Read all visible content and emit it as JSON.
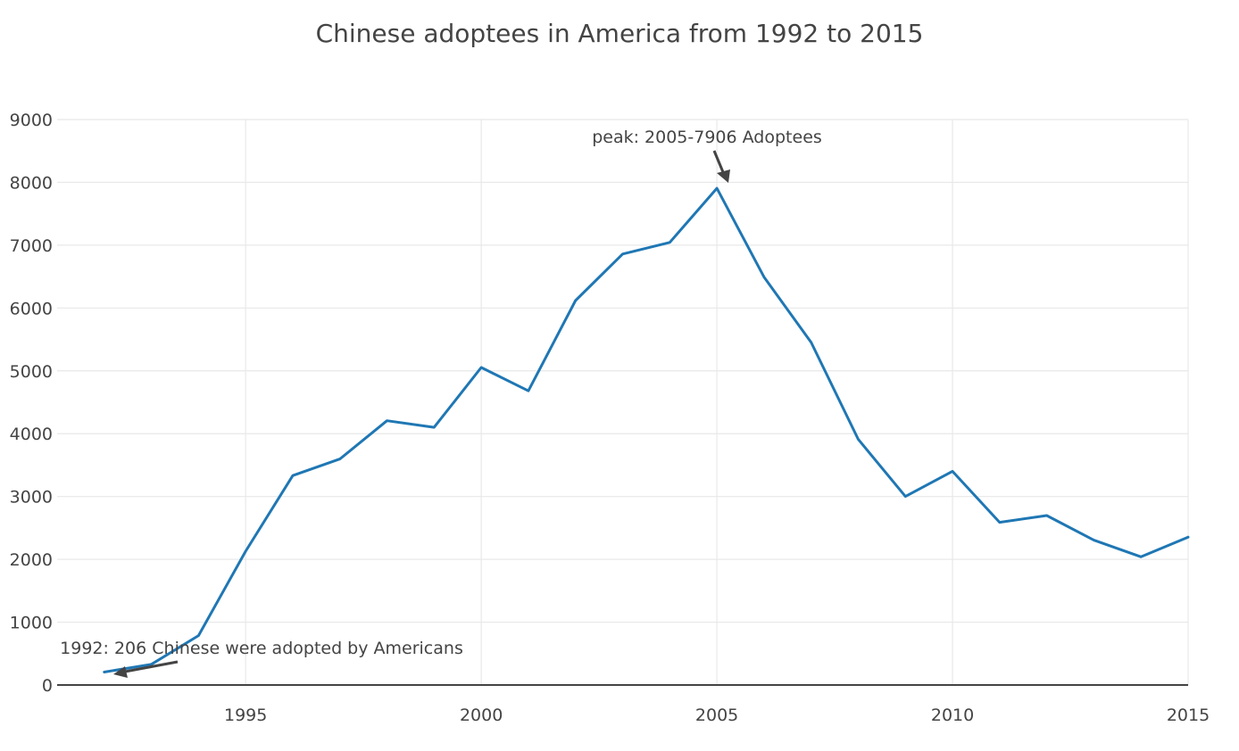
{
  "chart_data": {
    "type": "line",
    "title": "Chinese adoptees in America from 1992 to 2015",
    "xlabel": "",
    "ylabel": "",
    "xlim": [
      1991,
      2015
    ],
    "ylim": [
      0,
      9000
    ],
    "x_ticks": [
      1995,
      2000,
      2005,
      2010,
      2015
    ],
    "y_ticks": [
      0,
      1000,
      2000,
      3000,
      4000,
      5000,
      6000,
      7000,
      8000,
      9000
    ],
    "grid": true,
    "legend": "none",
    "series": [
      {
        "color": "#1f77b4",
        "x": [
          1992,
          1993,
          1994,
          1995,
          1996,
          1997,
          1998,
          1999,
          2000,
          2001,
          2002,
          2003,
          2004,
          2005,
          2006,
          2007,
          2008,
          2009,
          2010,
          2011,
          2012,
          2013,
          2014,
          2015
        ],
        "y": [
          206,
          330,
          787,
          2130,
          3333,
          3597,
          4206,
          4101,
          5053,
          4681,
          6119,
          6859,
          7044,
          7906,
          6493,
          5453,
          3909,
          3001,
          3401,
          2589,
          2697,
          2306,
          2040,
          2354
        ]
      }
    ],
    "annotations": [
      {
        "text": "peak: 2005-7906 Adoptees",
        "x": 2005,
        "y": 7906
      },
      {
        "text": "1992: 206 Chinese were adopted by Americans",
        "x": 1992,
        "y": 206
      }
    ]
  }
}
